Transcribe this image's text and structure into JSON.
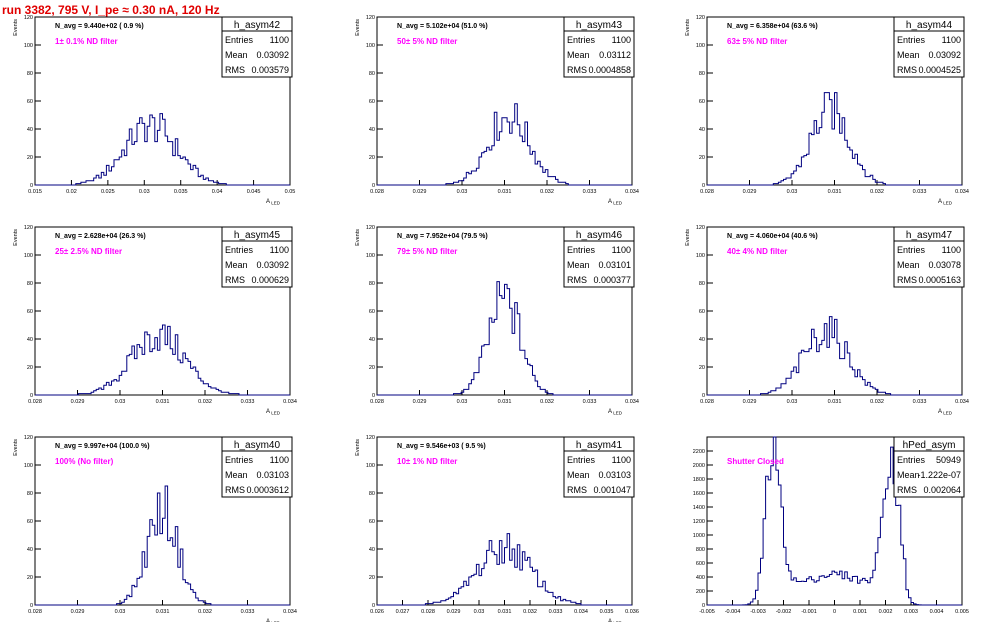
{
  "page": {
    "title": "run 3382,   795 V, I_pe ≈ 0.30 nA, 120 Hz"
  },
  "chart_data": [
    {
      "type": "histogram",
      "name": "h_asym42",
      "navg": "N_avg = 9.440e+02 ( 0.9 %)",
      "filter": "1± 0.1% ND filter",
      "stats": [
        [
          "Entries",
          "1100"
        ],
        [
          "Mean",
          "0.03092"
        ],
        [
          "RMS",
          "0.003579"
        ]
      ],
      "ylabel": "Events",
      "xlabel": "A_LED",
      "xlim": [
        0.015,
        0.05
      ],
      "ylim": [
        0,
        120
      ],
      "xticks": [
        0.015,
        0.02,
        0.025,
        0.03,
        0.035,
        0.04,
        0.045,
        0.05
      ],
      "xticklabels": [
        "0.015",
        "0.02",
        "0.025",
        "0.03",
        "0.035",
        "0.04",
        "0.045",
        "0.05"
      ],
      "yticks": [
        0,
        20,
        40,
        60,
        80,
        100,
        120
      ],
      "yticklabels": [
        "0",
        "20",
        "40",
        "60",
        "80",
        "100",
        "120"
      ],
      "mean": 0.0309,
      "sigma": 0.0036,
      "peak": 50
    },
    {
      "type": "histogram",
      "name": "h_asym43",
      "navg": "N_avg = 5.102e+04 (51.0 %)",
      "filter": "50± 5% ND filter",
      "stats": [
        [
          "Entries",
          "1100"
        ],
        [
          "Mean",
          "0.03112"
        ],
        [
          "RMS",
          "0.0004858"
        ]
      ],
      "ylabel": "Events",
      "xlabel": "A_LED",
      "xlim": [
        0.028,
        0.034
      ],
      "ylim": [
        0,
        120
      ],
      "xticks": [
        0.028,
        0.029,
        0.03,
        0.031,
        0.032,
        0.033,
        0.034
      ],
      "xticklabels": [
        "0.028",
        "0.029",
        "0.03",
        "0.031",
        "0.032",
        "0.033",
        "0.034"
      ],
      "yticks": [
        0,
        20,
        40,
        60,
        80,
        100,
        120
      ],
      "yticklabels": [
        "0",
        "20",
        "40",
        "60",
        "80",
        "100",
        "120"
      ],
      "mean": 0.0311,
      "sigma": 0.00049,
      "peak": 58
    },
    {
      "type": "histogram",
      "name": "h_asym44",
      "navg": "N_avg = 6.358e+04 (63.6 %)",
      "filter": "63± 5% ND filter",
      "stats": [
        [
          "Entries",
          "1100"
        ],
        [
          "Mean",
          "0.03092"
        ],
        [
          "RMS",
          "0.0004525"
        ]
      ],
      "ylabel": "Events",
      "xlabel": "A_LED",
      "xlim": [
        0.028,
        0.034
      ],
      "ylim": [
        0,
        120
      ],
      "xticks": [
        0.028,
        0.029,
        0.03,
        0.031,
        0.032,
        0.033,
        0.034
      ],
      "xticklabels": [
        "0.028",
        "0.029",
        "0.03",
        "0.031",
        "0.032",
        "0.033",
        "0.034"
      ],
      "yticks": [
        0,
        20,
        40,
        60,
        80,
        100,
        120
      ],
      "yticklabels": [
        "0",
        "20",
        "40",
        "60",
        "80",
        "100",
        "120"
      ],
      "mean": 0.0309,
      "sigma": 0.00045,
      "peak": 63
    },
    {
      "type": "histogram",
      "name": "h_asym45",
      "navg": "N_avg = 2.628e+04 (26.3 %)",
      "filter": "25± 2.5% ND filter",
      "stats": [
        [
          "Entries",
          "1100"
        ],
        [
          "Mean",
          "0.03092"
        ],
        [
          "RMS",
          "0.000629"
        ]
      ],
      "ylabel": "Events",
      "xlabel": "A_LED",
      "xlim": [
        0.028,
        0.034
      ],
      "ylim": [
        0,
        120
      ],
      "xticks": [
        0.028,
        0.029,
        0.03,
        0.031,
        0.032,
        0.033,
        0.034
      ],
      "xticklabels": [
        "0.028",
        "0.029",
        "0.03",
        "0.031",
        "0.032",
        "0.033",
        "0.034"
      ],
      "yticks": [
        0,
        20,
        40,
        60,
        80,
        100,
        120
      ],
      "yticklabels": [
        "0",
        "20",
        "40",
        "60",
        "80",
        "100",
        "120"
      ],
      "mean": 0.0309,
      "sigma": 0.00063,
      "peak": 50
    },
    {
      "type": "histogram",
      "name": "h_asym46",
      "navg": "N_avg = 7.952e+04 (79.5 %)",
      "filter": "79± 5% ND filter",
      "stats": [
        [
          "Entries",
          "1100"
        ],
        [
          "Mean",
          "0.03101"
        ],
        [
          "RMS",
          "0.000377"
        ]
      ],
      "ylabel": "Events",
      "xlabel": "A_LED",
      "xlim": [
        0.028,
        0.034
      ],
      "ylim": [
        0,
        120
      ],
      "xticks": [
        0.028,
        0.029,
        0.03,
        0.031,
        0.032,
        0.033,
        0.034
      ],
      "xticklabels": [
        "0.028",
        "0.029",
        "0.03",
        "0.031",
        "0.032",
        "0.033",
        "0.034"
      ],
      "yticks": [
        0,
        20,
        40,
        60,
        80,
        100,
        120
      ],
      "yticklabels": [
        "0",
        "20",
        "40",
        "60",
        "80",
        "100",
        "120"
      ],
      "mean": 0.031,
      "sigma": 0.00038,
      "peak": 80
    },
    {
      "type": "histogram",
      "name": "h_asym47",
      "navg": "N_avg = 4.060e+04 (40.6 %)",
      "filter": "40± 4% ND filter",
      "stats": [
        [
          "Entries",
          "1100"
        ],
        [
          "Mean",
          "0.03078"
        ],
        [
          "RMS",
          "0.0005163"
        ]
      ],
      "ylabel": "Events",
      "xlabel": "A_LED",
      "xlim": [
        0.028,
        0.034
      ],
      "ylim": [
        0,
        120
      ],
      "xticks": [
        0.028,
        0.029,
        0.03,
        0.031,
        0.032,
        0.033,
        0.034
      ],
      "xticklabels": [
        "0.028",
        "0.029",
        "0.03",
        "0.031",
        "0.032",
        "0.033",
        "0.034"
      ],
      "yticks": [
        0,
        20,
        40,
        60,
        80,
        100,
        120
      ],
      "yticklabels": [
        "0",
        "20",
        "40",
        "60",
        "80",
        "100",
        "120"
      ],
      "mean": 0.0308,
      "sigma": 0.00052,
      "peak": 54
    },
    {
      "type": "histogram",
      "name": "h_asym40",
      "navg": "N_avg = 9.997e+04 (100.0 %)",
      "filter": "100% (No filter)",
      "stats": [
        [
          "Entries",
          "1100"
        ],
        [
          "Mean",
          "0.03103"
        ],
        [
          "RMS",
          "0.0003612"
        ]
      ],
      "ylabel": "Events",
      "xlabel": "A_LED",
      "xlim": [
        0.028,
        0.034
      ],
      "ylim": [
        0,
        120
      ],
      "xticks": [
        0.028,
        0.029,
        0.03,
        0.031,
        0.032,
        0.033,
        0.034
      ],
      "xticklabels": [
        "0.028",
        "0.029",
        "0.03",
        "0.031",
        "0.032",
        "0.033",
        "0.034"
      ],
      "yticks": [
        0,
        20,
        40,
        60,
        80,
        100,
        120
      ],
      "yticklabels": [
        "0",
        "20",
        "40",
        "60",
        "80",
        "100",
        "120"
      ],
      "mean": 0.031,
      "sigma": 0.00036,
      "peak": 80
    },
    {
      "type": "histogram",
      "name": "h_asym41",
      "navg": "N_avg = 9.546e+03 ( 9.5 %)",
      "filter": "10± 1% ND filter",
      "stats": [
        [
          "Entries",
          "1100"
        ],
        [
          "Mean",
          "0.03103"
        ],
        [
          "RMS",
          "0.001047"
        ]
      ],
      "ylabel": "Events",
      "xlabel": "A_LED",
      "xlim": [
        0.026,
        0.036
      ],
      "ylim": [
        0,
        120
      ],
      "xticks": [
        0.026,
        0.027,
        0.028,
        0.029,
        0.03,
        0.031,
        0.032,
        0.033,
        0.034,
        0.035,
        0.036
      ],
      "xticklabels": [
        "0.026",
        "0.027",
        "0.028",
        "0.029",
        "0.03",
        "0.031",
        "0.032",
        "0.033",
        "0.034",
        "0.035",
        "0.036"
      ],
      "yticks": [
        0,
        20,
        40,
        60,
        80,
        100,
        120
      ],
      "yticklabels": [
        "0",
        "20",
        "40",
        "60",
        "80",
        "100",
        "120"
      ],
      "mean": 0.031,
      "sigma": 0.00105,
      "peak": 48
    },
    {
      "type": "histogram",
      "name": "hPed_asym",
      "navg": "",
      "filter": "Shutter Closed",
      "stats": [
        [
          "Entries",
          "50949"
        ],
        [
          "Mean",
          "-1.222e-07"
        ],
        [
          "RMS",
          "0.002064"
        ]
      ],
      "ylabel": "",
      "xlabel": "",
      "xlim": [
        -0.005,
        0.005
      ],
      "ylim": [
        0,
        2400
      ],
      "xticks": [
        -0.005,
        -0.004,
        -0.003,
        -0.002,
        -0.001,
        0,
        0.001,
        0.002,
        0.003,
        0.004,
        0.005
      ],
      "xticklabels": [
        "-0.005",
        "-0.004",
        "-0.003",
        "-0.002",
        "-0.001",
        "0",
        "0.001",
        "0.002",
        "0.003",
        "0.004",
        "0.005"
      ],
      "yticks": [
        0,
        200,
        400,
        600,
        800,
        1000,
        1200,
        1400,
        1600,
        1800,
        2000,
        2200
      ],
      "yticklabels": [
        "0",
        "200",
        "400",
        "600",
        "800",
        "1000",
        "1200",
        "1400",
        "1600",
        "1800",
        "2000",
        "2200"
      ],
      "double_peak": true,
      "peak": 2150
    }
  ]
}
